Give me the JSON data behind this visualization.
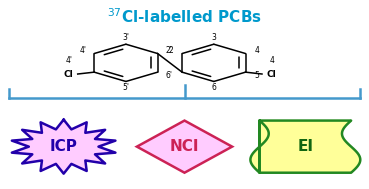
{
  "title": "$^{37}$Cl-labelled PCBs",
  "title_color": "#0099CC",
  "title_fontsize": 11,
  "bg_color": "#ffffff",
  "bracket_color": "#4499CC",
  "icp_fill": "#FFCCFF",
  "icp_edge": "#2200AA",
  "icp_text": "ICP",
  "icp_text_color": "#2200AA",
  "nci_fill": "#FFCCFF",
  "nci_edge": "#CC2255",
  "nci_text": "NCI",
  "nci_text_color": "#CC2255",
  "ei_fill": "#FFFF99",
  "ei_edge": "#228822",
  "ei_text": "EI",
  "ei_text_color": "#116611",
  "mol_color": "#000000"
}
